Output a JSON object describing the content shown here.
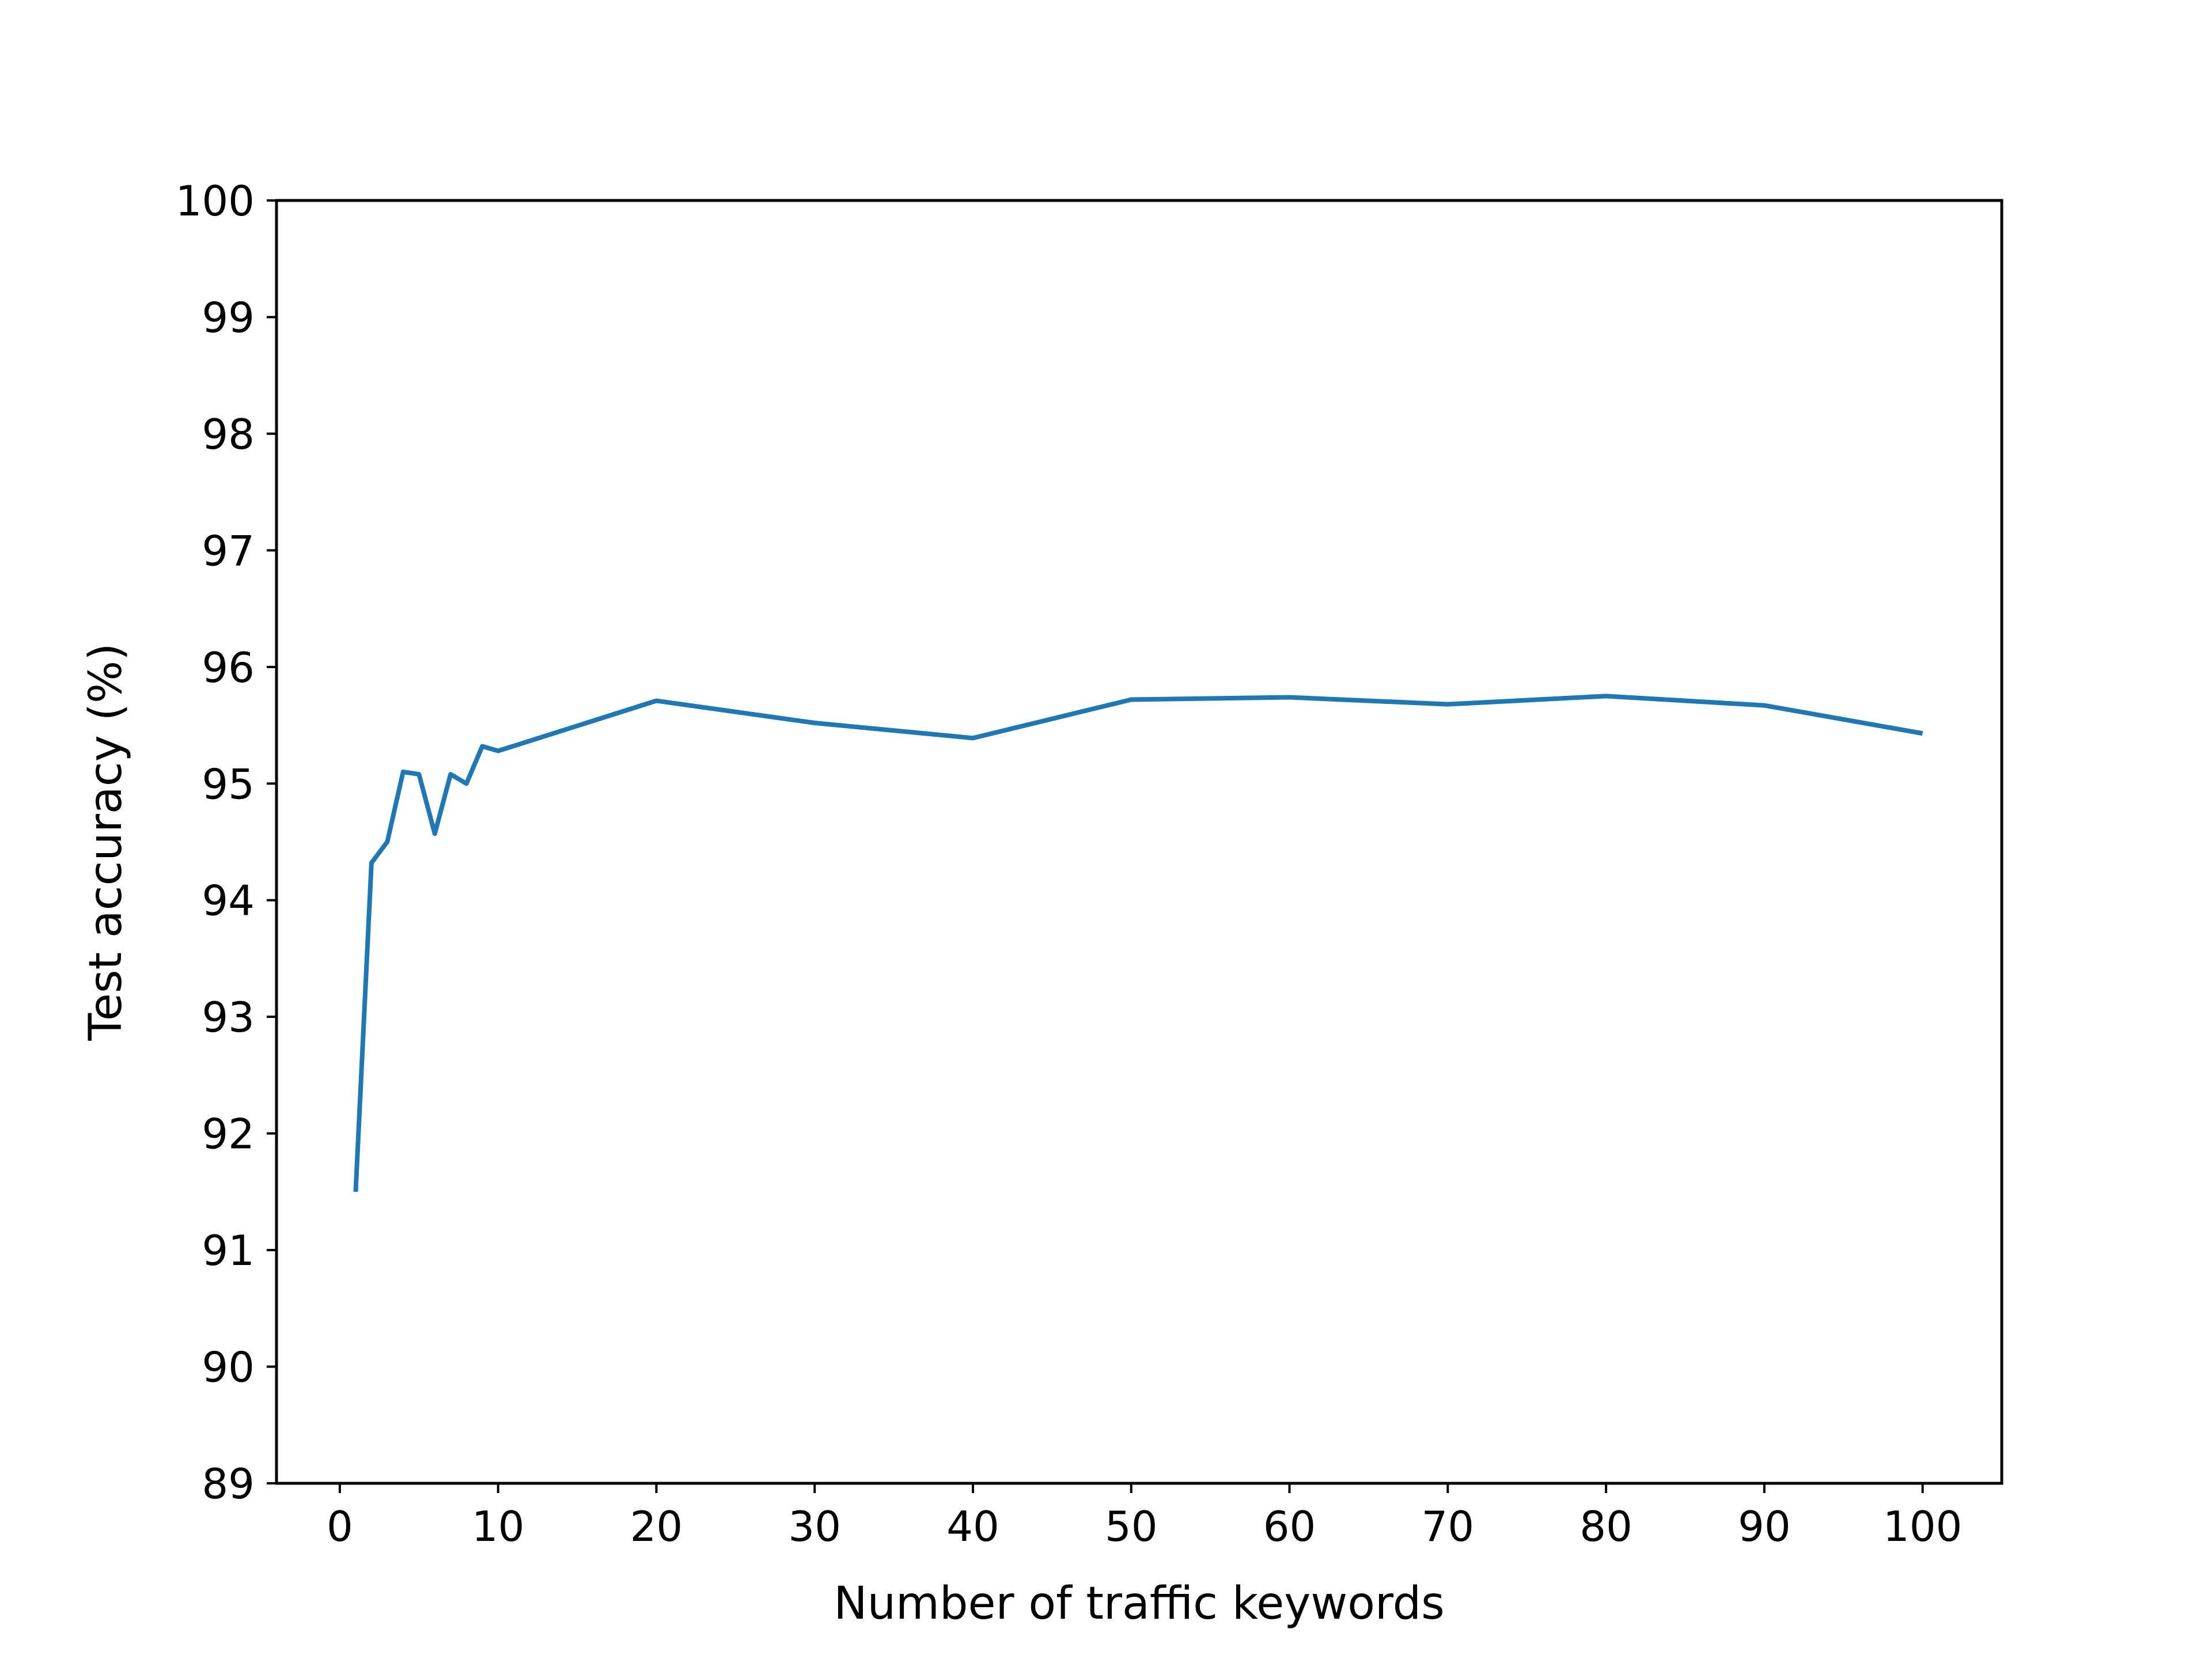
{
  "chart_data": {
    "type": "line",
    "title": "",
    "xlabel": "Number of traffic keywords",
    "ylabel": "Test accuracy (%)",
    "xlim": [
      -4,
      105
    ],
    "ylim": [
      89,
      100
    ],
    "xticks": [
      0,
      10,
      20,
      30,
      40,
      50,
      60,
      70,
      80,
      90,
      100
    ],
    "yticks": [
      89,
      90,
      91,
      92,
      93,
      94,
      95,
      96,
      97,
      98,
      99,
      100
    ],
    "grid": false,
    "legend": "none",
    "series": [
      {
        "color": "#1f77b4",
        "x": [
          1,
          2,
          3,
          4,
          5,
          6,
          7,
          8,
          9,
          10,
          20,
          30,
          40,
          50,
          60,
          70,
          80,
          90,
          100
        ],
        "y": [
          91.5,
          94.32,
          94.5,
          95.1,
          95.08,
          94.57,
          95.08,
          95.0,
          95.32,
          95.28,
          95.71,
          95.52,
          95.39,
          95.72,
          95.74,
          95.68,
          95.75,
          95.67,
          95.43
        ]
      }
    ]
  }
}
